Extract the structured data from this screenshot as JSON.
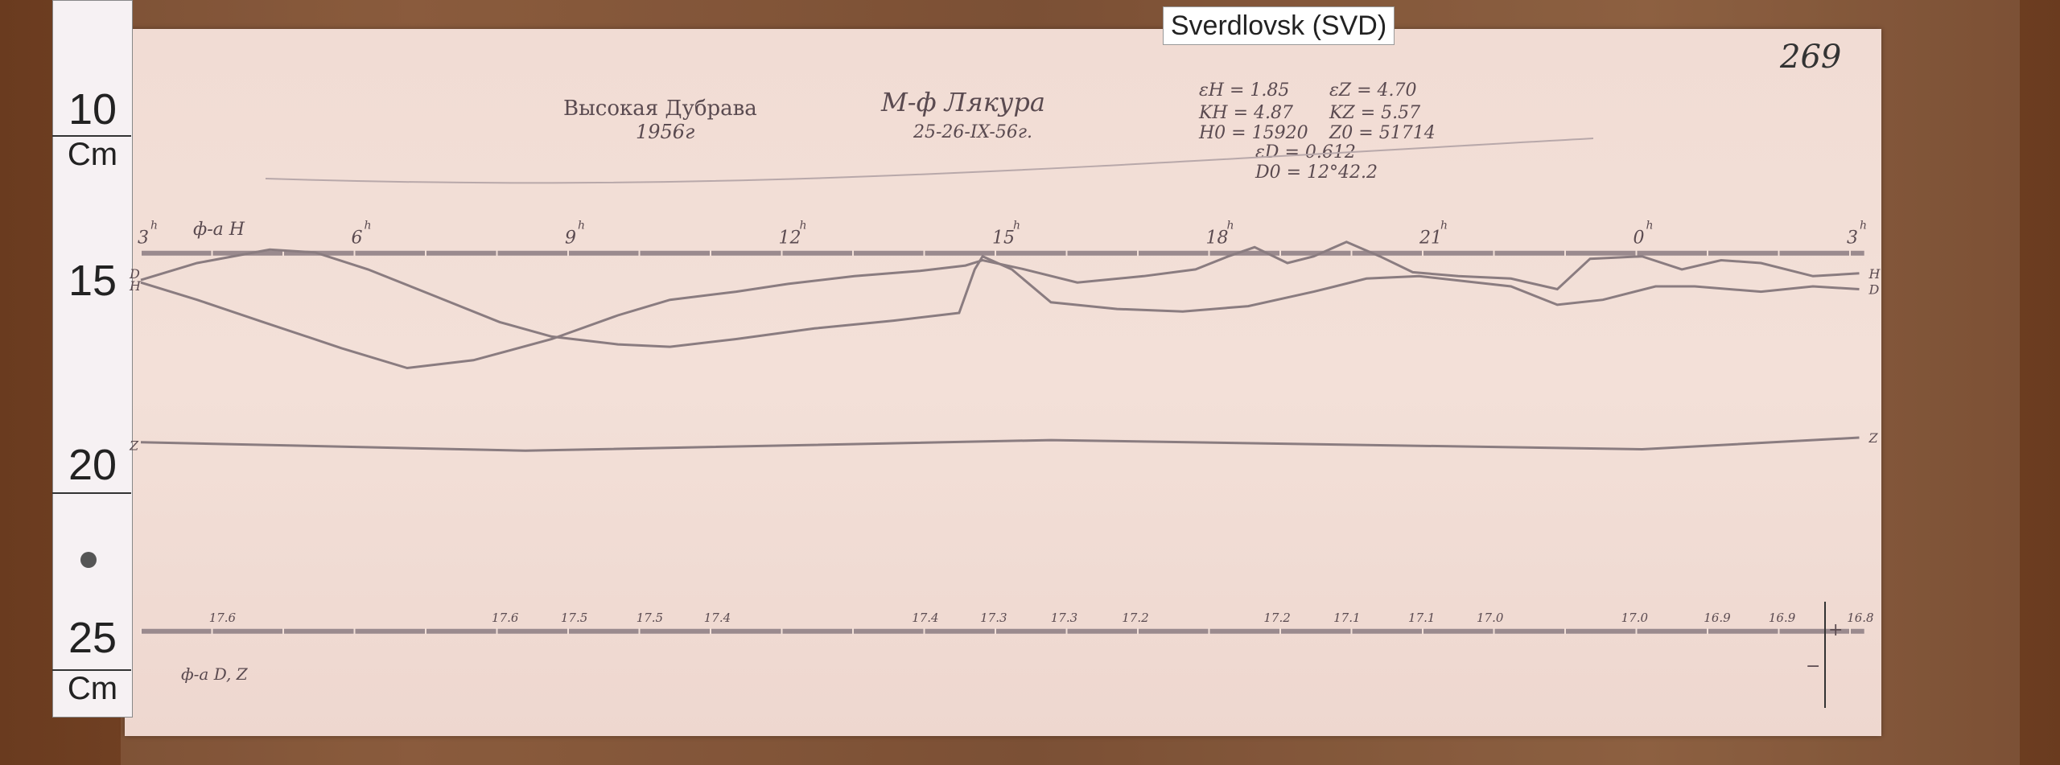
{
  "label_card": "Sverdlovsk (SVD)",
  "sheet_number": "269",
  "ruler": {
    "marks": [
      "10",
      "15",
      "20",
      "25"
    ],
    "unit_top": "Cm",
    "unit_bottom": "Cm"
  },
  "header": {
    "station": "Высокая Дубрава",
    "station_year": "1956г",
    "compiler": "М-ф Лякура",
    "date": "25-26-IX-56г.",
    "params": [
      "εH = 1.85",
      "εZ = 4.70",
      "KH = 4.87",
      "KZ = 5.57",
      "H0 = 15920",
      "Z0 = 51714",
      "εD = 0.612",
      "D0 = 12°42.2"
    ]
  },
  "chart_data": {
    "type": "line",
    "title": "",
    "xlabel": "",
    "ylabel": "",
    "x_unit": "hours",
    "y_unit": "cm (ruler)",
    "xlim": [
      3,
      27
    ],
    "ylim": [
      10,
      25
    ],
    "grid": false,
    "hour_ticks": [
      {
        "h": 3,
        "label": "3"
      },
      {
        "h": 6,
        "label": "6"
      },
      {
        "h": 9,
        "label": "9"
      },
      {
        "h": 12,
        "label": "12"
      },
      {
        "h": 15,
        "label": "15"
      },
      {
        "h": 18,
        "label": "18"
      },
      {
        "h": 21,
        "label": "21"
      },
      {
        "h": 24,
        "label": "0"
      },
      {
        "h": 27,
        "label": "3"
      }
    ],
    "hour_superscript": "h",
    "top_baseline_label": "ф-а H",
    "bottom_baseline_label": "ф-а D, Z",
    "series": [
      {
        "name": "H",
        "left_label": "H",
        "right_label": "H",
        "points": [
          [
            3.0,
            14.83
          ],
          [
            3.79,
            15.32
          ],
          [
            4.72,
            15.95
          ],
          [
            5.82,
            16.69
          ],
          [
            6.74,
            17.25
          ],
          [
            7.67,
            17.03
          ],
          [
            8.77,
            16.43
          ],
          [
            9.7,
            15.76
          ],
          [
            10.43,
            15.32
          ],
          [
            11.36,
            15.09
          ],
          [
            12.09,
            14.87
          ],
          [
            13.02,
            14.65
          ],
          [
            13.94,
            14.5
          ],
          [
            14.58,
            14.35
          ],
          [
            14.82,
            14.2
          ],
          [
            15.41,
            14.46
          ],
          [
            16.15,
            14.83
          ],
          [
            17.08,
            14.65
          ],
          [
            17.81,
            14.46
          ],
          [
            18.27,
            14.09
          ],
          [
            18.64,
            13.83
          ],
          [
            19.1,
            14.28
          ],
          [
            19.47,
            14.09
          ],
          [
            19.93,
            13.68
          ],
          [
            20.4,
            14.09
          ],
          [
            20.86,
            14.54
          ],
          [
            21.5,
            14.65
          ],
          [
            22.24,
            14.72
          ],
          [
            22.89,
            15.02
          ],
          [
            23.35,
            14.16
          ],
          [
            24.08,
            14.09
          ],
          [
            24.64,
            14.46
          ],
          [
            25.19,
            14.2
          ],
          [
            25.75,
            14.28
          ],
          [
            26.48,
            14.65
          ],
          [
            27.13,
            14.57
          ]
        ]
      },
      {
        "name": "D",
        "left_label": "D",
        "right_label": "D",
        "points": [
          [
            3.0,
            14.76
          ],
          [
            3.79,
            14.28
          ],
          [
            4.81,
            13.9
          ],
          [
            5.45,
            13.98
          ],
          [
            6.19,
            14.46
          ],
          [
            7.11,
            15.2
          ],
          [
            8.04,
            15.95
          ],
          [
            8.77,
            16.36
          ],
          [
            9.7,
            16.58
          ],
          [
            10.43,
            16.65
          ],
          [
            11.36,
            16.43
          ],
          [
            12.46,
            16.13
          ],
          [
            13.57,
            15.91
          ],
          [
            14.49,
            15.69
          ],
          [
            14.71,
            14.46
          ],
          [
            14.82,
            14.09
          ],
          [
            15.23,
            14.46
          ],
          [
            15.78,
            15.39
          ],
          [
            16.71,
            15.58
          ],
          [
            17.63,
            15.65
          ],
          [
            18.55,
            15.5
          ],
          [
            19.47,
            15.09
          ],
          [
            20.21,
            14.72
          ],
          [
            20.95,
            14.65
          ],
          [
            22.24,
            14.94
          ],
          [
            22.89,
            15.46
          ],
          [
            23.53,
            15.32
          ],
          [
            24.27,
            14.94
          ],
          [
            24.82,
            14.94
          ],
          [
            25.75,
            15.09
          ],
          [
            26.48,
            14.94
          ],
          [
            27.13,
            15.02
          ]
        ]
      },
      {
        "name": "Z",
        "left_label": "Z",
        "right_label": "Z",
        "points": [
          [
            3.0,
            19.35
          ],
          [
            8.4,
            19.59
          ],
          [
            15.78,
            19.29
          ],
          [
            24.08,
            19.55
          ],
          [
            27.13,
            19.22
          ]
        ]
      }
    ],
    "baselines_cm": {
      "top": 14.0,
      "bottom": 24.7
    },
    "bottom_annotations": [
      {
        "h": 4.07,
        "label": "17.6"
      },
      {
        "h": 8.04,
        "label": "17.6"
      },
      {
        "h": 9.01,
        "label": "17.5"
      },
      {
        "h": 10.07,
        "label": "17.5"
      },
      {
        "h": 11.02,
        "label": "17.4"
      },
      {
        "h": 13.94,
        "label": "17.4"
      },
      {
        "h": 14.9,
        "label": "17.3"
      },
      {
        "h": 15.89,
        "label": "17.3"
      },
      {
        "h": 16.89,
        "label": "17.2"
      },
      {
        "h": 18.88,
        "label": "17.2"
      },
      {
        "h": 19.86,
        "label": "17.1"
      },
      {
        "h": 20.91,
        "label": "17.1"
      },
      {
        "h": 21.87,
        "label": "17.0"
      },
      {
        "h": 23.9,
        "label": "17.0"
      },
      {
        "h": 25.06,
        "label": "16.9"
      },
      {
        "h": 25.97,
        "label": "16.9"
      },
      {
        "h": 27.07,
        "label": "16.8"
      }
    ],
    "scale_marks": {
      "plus": "+",
      "minus": "−"
    },
    "colors": {
      "trace": "#8a7c80",
      "baseline": "#9a8a8e",
      "paper": "#f2ddd5"
    }
  }
}
